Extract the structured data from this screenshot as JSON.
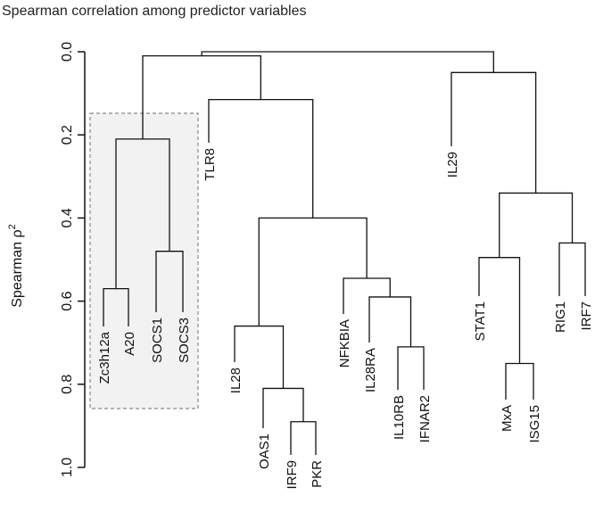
{
  "chart_data": {
    "type": "dendrogram",
    "title": "Spearman correlation among predictor variables",
    "ylabel": "Spearman ρ",
    "ylabel_superscript": "2",
    "ylim": [
      0.0,
      1.0
    ],
    "yticks": [
      "0.0",
      "0.2",
      "0.4",
      "0.6",
      "0.8",
      "1.0"
    ],
    "leaves": [
      "Zc3h12a",
      "A20",
      "SOCS1",
      "SOCS3",
      "TLR8",
      "IL28",
      "OAS1",
      "IRF9",
      "PKR",
      "NFKBIA",
      "IL28RA",
      "IL10RB",
      "IFNAR2",
      "IL29",
      "STAT1",
      "MxA",
      "ISG15",
      "RIG1",
      "IRF7"
    ],
    "merges": [
      {
        "id": "m1",
        "a": "Zc3h12a",
        "b": "A20",
        "height": 0.57
      },
      {
        "id": "m2",
        "a": "SOCS1",
        "b": "SOCS3",
        "height": 0.48
      },
      {
        "id": "m3",
        "a": "m1",
        "b": "m2",
        "height": 0.21
      },
      {
        "id": "m4",
        "a": "IRF9",
        "b": "PKR",
        "height": 0.89
      },
      {
        "id": "m5",
        "a": "OAS1",
        "b": "m4",
        "height": 0.81
      },
      {
        "id": "m6",
        "a": "IL28",
        "b": "m5",
        "height": 0.66
      },
      {
        "id": "m7",
        "a": "IL10RB",
        "b": "IFNAR2",
        "height": 0.71
      },
      {
        "id": "m8",
        "a": "IL28RA",
        "b": "m7",
        "height": 0.59
      },
      {
        "id": "m9",
        "a": "NFKBIA",
        "b": "m8",
        "height": 0.545
      },
      {
        "id": "m10",
        "a": "m6",
        "b": "m9",
        "height": 0.4
      },
      {
        "id": "m11",
        "a": "TLR8",
        "b": "m10",
        "height": 0.115
      },
      {
        "id": "m12",
        "a": "m3",
        "b": "m11",
        "height": 0.01
      },
      {
        "id": "m13",
        "a": "MxA",
        "b": "ISG15",
        "height": 0.75
      },
      {
        "id": "m14",
        "a": "STAT1",
        "b": "m13",
        "height": 0.495
      },
      {
        "id": "m15",
        "a": "RIG1",
        "b": "IRF7",
        "height": 0.46
      },
      {
        "id": "m16",
        "a": "m14",
        "b": "m15",
        "height": 0.34
      },
      {
        "id": "m17",
        "a": "IL29",
        "b": "m16",
        "height": 0.05
      },
      {
        "id": "m18",
        "a": "m12",
        "b": "m17",
        "height": 0.0
      }
    ],
    "highlight_group": [
      "Zc3h12a",
      "A20",
      "SOCS1",
      "SOCS3"
    ],
    "grid": false,
    "legend": "none"
  }
}
